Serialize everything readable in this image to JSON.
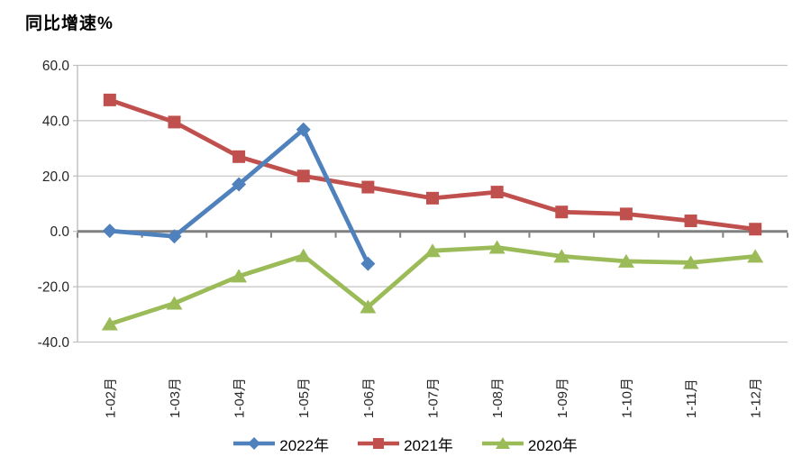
{
  "chart_data": {
    "type": "line",
    "title": "同比增速%",
    "categories": [
      "1-02月",
      "1-03月",
      "1-04月",
      "1-05月",
      "1-06月",
      "1-07月",
      "1-08月",
      "1-09月",
      "1-10月",
      "1-11月",
      "1-12月"
    ],
    "series": [
      {
        "name": "2022年",
        "marker": "diamond",
        "color": "#4F81BD",
        "values": [
          0.2,
          -1.8,
          17.0,
          36.8,
          -11.7,
          null,
          null,
          null,
          null,
          null,
          null
        ]
      },
      {
        "name": "2021年",
        "marker": "square",
        "color": "#C0504D",
        "values": [
          47.5,
          39.5,
          27.0,
          20.0,
          16.0,
          12.0,
          14.2,
          7.0,
          6.3,
          3.8,
          0.8
        ]
      },
      {
        "name": "2020年",
        "marker": "triangle",
        "color": "#9BBB59",
        "values": [
          -33.5,
          -26.0,
          -16.2,
          -8.8,
          -27.3,
          -7.0,
          -5.8,
          -9.0,
          -10.8,
          -11.3,
          -9.0
        ]
      }
    ],
    "y_axis": {
      "min": -40,
      "max": 60,
      "step": 20,
      "tick_labels": [
        "60.0",
        "40.0",
        "20.0",
        "0.0",
        "-20.0",
        "-40.0"
      ]
    },
    "x_axis": {
      "label_rotation_deg": -90
    },
    "legend": {
      "position": "bottom",
      "entries": [
        "2022年",
        "2021年",
        "2020年"
      ]
    },
    "grid": true,
    "style_colors": {
      "gridline": "#C3C3C3",
      "zero_axis": "#808080",
      "axis_line": "#BFBFBF",
      "tick": "#808080",
      "axis_text": "#262626"
    }
  }
}
